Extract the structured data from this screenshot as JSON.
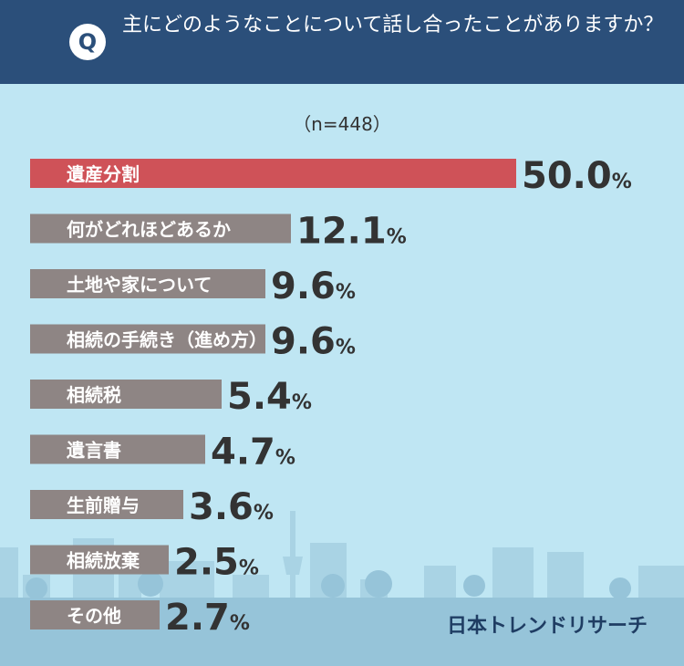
{
  "header": {
    "q_mark": "Q",
    "question": "主にどのようなことについて話し合ったことがありますか？"
  },
  "sample_size": "（n=448）",
  "brand": "日本トレンドリサーチ",
  "colors": {
    "header": "#2b4f7a",
    "highlight_bar": "#cf5258",
    "bar": "#8e8584",
    "value_text": "#333333"
  },
  "chart_data": {
    "type": "bar",
    "orientation": "horizontal",
    "categories": [
      "遺産分割",
      "何がどれほどあるか",
      "土地や家について",
      "相続の手続き（進め方）",
      "相続税",
      "遺言書",
      "生前贈与",
      "相続放棄",
      "その他"
    ],
    "values": [
      50.0,
      12.1,
      9.6,
      9.6,
      5.4,
      4.7,
      3.6,
      2.5,
      2.7
    ],
    "value_labels": [
      "50.0",
      "12.1",
      "9.6",
      "9.6",
      "5.4",
      "4.7",
      "3.6",
      "2.5",
      "2.7"
    ],
    "unit": "%",
    "title": "主にどのようなことについて話し合ったことがありますか？"
  }
}
